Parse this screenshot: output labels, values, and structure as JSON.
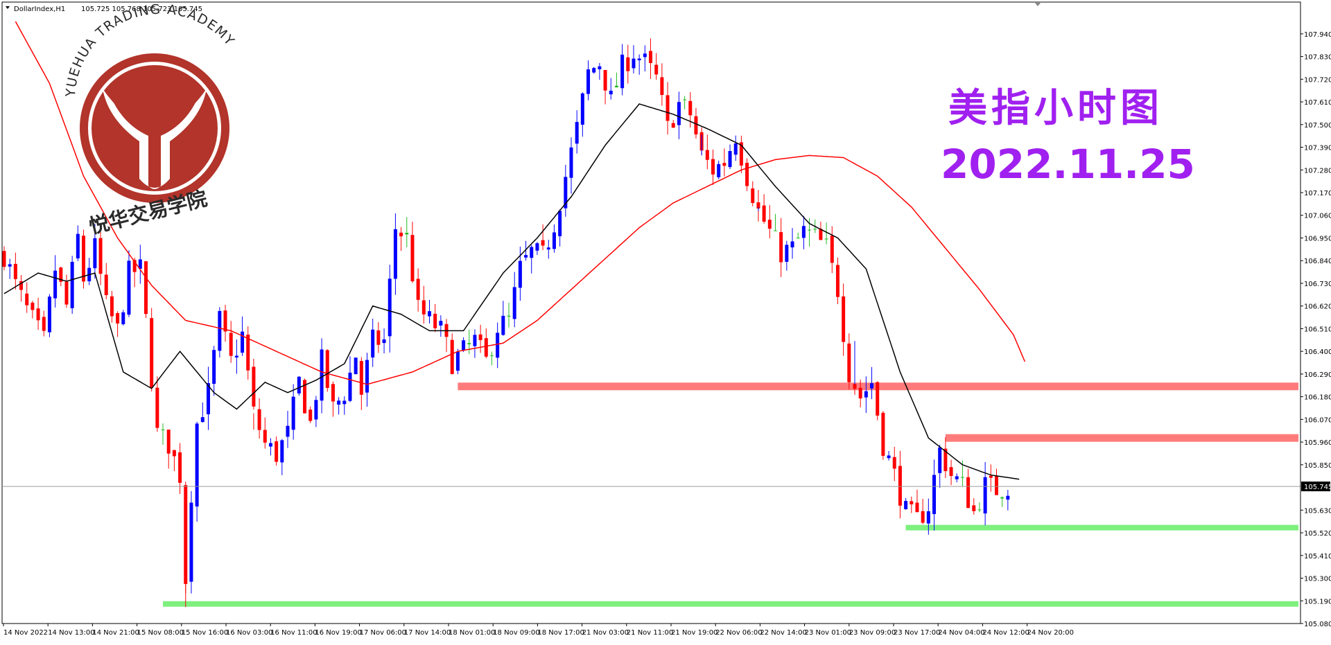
{
  "header": {
    "symbol": "DollarIndex,H1",
    "ohlc": "105.725 105.768 105.723 105.745"
  },
  "overlay": {
    "title_cn": "美指小时图",
    "date": "2022.11.25"
  },
  "watermark": {
    "arc_text": "YUEHUA TRADING ACADEMY",
    "cn_name": "悦华交易学院",
    "color": "#b2342a"
  },
  "colors": {
    "bull": "#0000ff",
    "bear": "#ff0000",
    "doji": "#22bb22",
    "ma_fast": "#000000",
    "ma_slow": "#ff0000",
    "resistance": "#ff7b7b",
    "support": "#7ef07e",
    "title": "#a020f0"
  },
  "chart_data": {
    "type": "candlestick",
    "ylim": [
      105.08,
      108.0
    ],
    "y_ticks": [
      "107.940",
      "107.830",
      "107.720",
      "107.610",
      "107.500",
      "107.390",
      "107.280",
      "107.170",
      "107.060",
      "106.950",
      "106.840",
      "106.730",
      "106.620",
      "106.510",
      "106.400",
      "106.290",
      "106.180",
      "106.070",
      "105.960",
      "105.850",
      "105.745",
      "105.630",
      "105.520",
      "105.410",
      "105.300",
      "105.190",
      "105.080"
    ],
    "x_ticks": [
      "14 Nov 2022",
      "14 Nov 13:00",
      "14 Nov 21:00",
      "15 Nov 08:00",
      "15 Nov 16:00",
      "16 Nov 03:00",
      "16 Nov 11:00",
      "16 Nov 19:00",
      "17 Nov 06:00",
      "17 Nov 14:00",
      "18 Nov 01:00",
      "18 Nov 09:00",
      "18 Nov 17:00",
      "21 Nov 03:00",
      "21 Nov 11:00",
      "21 Nov 19:00",
      "22 Nov 06:00",
      "22 Nov 14:00",
      "23 Nov 01:00",
      "23 Nov 09:00",
      "23 Nov 17:00",
      "24 Nov 04:00",
      "24 Nov 12:00",
      "24 Nov 20:00"
    ],
    "current_price": 105.745,
    "price_line": {
      "label": "105.745"
    },
    "anchors": [
      [
        0,
        106.87
      ],
      [
        2,
        106.72
      ],
      [
        4,
        106.6
      ],
      [
        7,
        106.45
      ],
      [
        9,
        106.8
      ],
      [
        11,
        106.62
      ],
      [
        13,
        106.95
      ],
      [
        14,
        106.75
      ],
      [
        16,
        106.9
      ],
      [
        18,
        106.62
      ],
      [
        20,
        106.5
      ],
      [
        22,
        106.78
      ],
      [
        24,
        106.8
      ],
      [
        25,
        106.55
      ],
      [
        27,
        106.0
      ],
      [
        29,
        105.95
      ],
      [
        31,
        105.8
      ],
      [
        32,
        105.3
      ],
      [
        33,
        105.72
      ],
      [
        34,
        106.05
      ],
      [
        36,
        106.2
      ],
      [
        38,
        106.55
      ],
      [
        40,
        106.35
      ],
      [
        42,
        106.48
      ],
      [
        44,
        106.1
      ],
      [
        46,
        105.95
      ],
      [
        48,
        105.9
      ],
      [
        50,
        106.0
      ],
      [
        52,
        106.25
      ],
      [
        54,
        106.05
      ],
      [
        56,
        106.35
      ],
      [
        58,
        106.12
      ],
      [
        60,
        106.2
      ],
      [
        62,
        106.38
      ],
      [
        63,
        106.2
      ],
      [
        65,
        106.45
      ],
      [
        67,
        106.45
      ],
      [
        69,
        107.0
      ],
      [
        71,
        106.95
      ],
      [
        73,
        106.6
      ],
      [
        75,
        106.55
      ],
      [
        77,
        106.5
      ],
      [
        79,
        106.35
      ],
      [
        81,
        106.4
      ],
      [
        83,
        106.45
      ],
      [
        85,
        106.35
      ],
      [
        87,
        106.52
      ],
      [
        89,
        106.55
      ],
      [
        91,
        106.8
      ],
      [
        93,
        106.88
      ],
      [
        95,
        106.86
      ],
      [
        97,
        107.02
      ],
      [
        99,
        107.25
      ],
      [
        101,
        107.48
      ],
      [
        103,
        107.75
      ],
      [
        105,
        107.8
      ],
      [
        107,
        107.62
      ],
      [
        109,
        107.78
      ],
      [
        111,
        107.85
      ],
      [
        113,
        107.8
      ],
      [
        115,
        107.72
      ],
      [
        117,
        107.48
      ],
      [
        119,
        107.6
      ],
      [
        121,
        107.55
      ],
      [
        123,
        107.35
      ],
      [
        125,
        107.28
      ],
      [
        127,
        107.32
      ],
      [
        129,
        107.45
      ],
      [
        131,
        107.25
      ],
      [
        133,
        107.08
      ],
      [
        135,
        106.98
      ],
      [
        137,
        106.88
      ],
      [
        139,
        106.9
      ],
      [
        141,
        106.98
      ],
      [
        143,
        106.95
      ],
      [
        145,
        106.9
      ],
      [
        147,
        106.7
      ],
      [
        149,
        106.3
      ],
      [
        151,
        106.18
      ],
      [
        153,
        106.25
      ],
      [
        155,
        105.95
      ],
      [
        157,
        105.8
      ],
      [
        159,
        105.62
      ],
      [
        161,
        105.58
      ],
      [
        163,
        105.65
      ],
      [
        165,
        105.92
      ],
      [
        167,
        105.8
      ],
      [
        169,
        105.75
      ],
      [
        171,
        105.62
      ],
      [
        173,
        105.75
      ],
      [
        175,
        105.73
      ],
      [
        177,
        105.745
      ]
    ],
    "ma_fast_anchors": [
      [
        0,
        106.68
      ],
      [
        6,
        106.78
      ],
      [
        11,
        106.74
      ],
      [
        16,
        106.78
      ],
      [
        21,
        106.3
      ],
      [
        26,
        106.22
      ],
      [
        31,
        106.4
      ],
      [
        37,
        106.2
      ],
      [
        41,
        106.12
      ],
      [
        46,
        106.25
      ],
      [
        50,
        106.2
      ],
      [
        55,
        106.26
      ],
      [
        60,
        106.34
      ],
      [
        65,
        106.62
      ],
      [
        70,
        106.58
      ],
      [
        75,
        106.5
      ],
      [
        81,
        106.5
      ],
      [
        88,
        106.78
      ],
      [
        94,
        106.95
      ],
      [
        100,
        107.15
      ],
      [
        106,
        107.4
      ],
      [
        112,
        107.6
      ],
      [
        118,
        107.55
      ],
      [
        124,
        107.48
      ],
      [
        130,
        107.4
      ],
      [
        136,
        107.2
      ],
      [
        142,
        107.02
      ],
      [
        147,
        106.95
      ],
      [
        152,
        106.8
      ],
      [
        158,
        106.3
      ],
      [
        163,
        105.98
      ],
      [
        169,
        105.85
      ],
      [
        174,
        105.8
      ],
      [
        179,
        105.78
      ]
    ],
    "ma_slow_anchors": [
      [
        2,
        108.0
      ],
      [
        8,
        107.7
      ],
      [
        14,
        107.25
      ],
      [
        20,
        106.95
      ],
      [
        26,
        106.72
      ],
      [
        32,
        106.55
      ],
      [
        40,
        106.5
      ],
      [
        48,
        106.4
      ],
      [
        56,
        106.3
      ],
      [
        64,
        106.24
      ],
      [
        72,
        106.3
      ],
      [
        80,
        106.4
      ],
      [
        88,
        106.44
      ],
      [
        94,
        106.55
      ],
      [
        100,
        106.7
      ],
      [
        106,
        106.85
      ],
      [
        112,
        107.0
      ],
      [
        118,
        107.12
      ],
      [
        124,
        107.2
      ],
      [
        130,
        107.28
      ],
      [
        136,
        107.33
      ],
      [
        142,
        107.35
      ],
      [
        148,
        107.34
      ],
      [
        154,
        107.25
      ],
      [
        160,
        107.1
      ],
      [
        166,
        106.9
      ],
      [
        172,
        106.7
      ],
      [
        178,
        106.48
      ],
      [
        180,
        106.35
      ]
    ],
    "levels": [
      {
        "kind": "resistance",
        "price": 106.23,
        "x_from_bar": 80
      },
      {
        "kind": "resistance",
        "price": 105.98,
        "x_from_bar": 166
      },
      {
        "kind": "support",
        "price": 105.545,
        "x_from_bar": 159
      },
      {
        "kind": "support",
        "price": 105.175,
        "x_from_bar": 28
      }
    ]
  }
}
